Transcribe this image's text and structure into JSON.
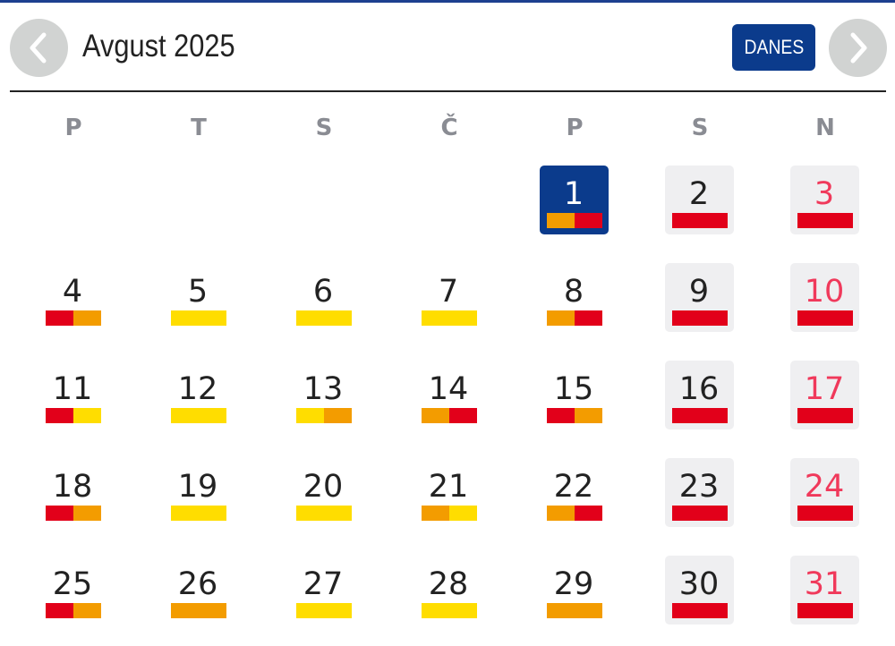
{
  "header": {
    "title": "Avgust 2025",
    "today_label": "DANES",
    "prev_icon": "chevron-left-icon",
    "next_icon": "chevron-right-icon"
  },
  "weekdays": [
    "P",
    "T",
    "S",
    "Č",
    "P",
    "S",
    "N"
  ],
  "first_weekday_index": 4,
  "today": 1,
  "colors": {
    "accent": "#0b3b8c",
    "red": "#e2001a",
    "orange": "#f39c00",
    "yellow": "#ffdd00",
    "sunday_text": "#f0395b"
  },
  "days": [
    {
      "n": "1",
      "bar": [
        "orange",
        "red"
      ]
    },
    {
      "n": "2",
      "bar": [
        "red"
      ]
    },
    {
      "n": "3",
      "bar": [
        "red"
      ]
    },
    {
      "n": "4",
      "bar": [
        "red",
        "orange"
      ]
    },
    {
      "n": "5",
      "bar": [
        "yellow"
      ]
    },
    {
      "n": "6",
      "bar": [
        "yellow"
      ]
    },
    {
      "n": "7",
      "bar": [
        "yellow"
      ]
    },
    {
      "n": "8",
      "bar": [
        "orange",
        "red"
      ]
    },
    {
      "n": "9",
      "bar": [
        "red"
      ]
    },
    {
      "n": "10",
      "bar": [
        "red"
      ]
    },
    {
      "n": "11",
      "bar": [
        "red",
        "yellow"
      ]
    },
    {
      "n": "12",
      "bar": [
        "yellow"
      ]
    },
    {
      "n": "13",
      "bar": [
        "yellow",
        "orange"
      ]
    },
    {
      "n": "14",
      "bar": [
        "orange",
        "red"
      ]
    },
    {
      "n": "15",
      "bar": [
        "red",
        "orange"
      ]
    },
    {
      "n": "16",
      "bar": [
        "red"
      ]
    },
    {
      "n": "17",
      "bar": [
        "red"
      ]
    },
    {
      "n": "18",
      "bar": [
        "red",
        "orange"
      ]
    },
    {
      "n": "19",
      "bar": [
        "yellow"
      ]
    },
    {
      "n": "20",
      "bar": [
        "yellow"
      ]
    },
    {
      "n": "21",
      "bar": [
        "orange",
        "yellow"
      ]
    },
    {
      "n": "22",
      "bar": [
        "orange",
        "red"
      ]
    },
    {
      "n": "23",
      "bar": [
        "red"
      ]
    },
    {
      "n": "24",
      "bar": [
        "red"
      ]
    },
    {
      "n": "25",
      "bar": [
        "red",
        "orange"
      ]
    },
    {
      "n": "26",
      "bar": [
        "orange"
      ]
    },
    {
      "n": "27",
      "bar": [
        "yellow"
      ]
    },
    {
      "n": "28",
      "bar": [
        "yellow"
      ]
    },
    {
      "n": "29",
      "bar": [
        "orange"
      ]
    },
    {
      "n": "30",
      "bar": [
        "red"
      ]
    },
    {
      "n": "31",
      "bar": [
        "red"
      ]
    }
  ]
}
